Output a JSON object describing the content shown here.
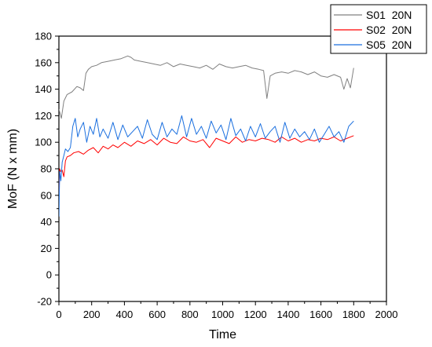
{
  "chart_data": {
    "type": "line",
    "title": "",
    "xlabel": "Time",
    "ylabel": "MoF (N x mm)",
    "xlim": [
      0,
      2000
    ],
    "ylim": [
      -20,
      180
    ],
    "x_ticks": [
      0,
      200,
      400,
      600,
      800,
      1000,
      1200,
      1400,
      1600,
      1800,
      2000
    ],
    "y_ticks": [
      -20,
      0,
      20,
      40,
      60,
      80,
      100,
      120,
      140,
      160,
      180
    ],
    "grid": false,
    "legend_position": "top-right",
    "series": [
      {
        "name": "S01  20N",
        "color": "#808080",
        "x": [
          0,
          15,
          30,
          50,
          80,
          110,
          130,
          150,
          165,
          180,
          200,
          230,
          260,
          300,
          340,
          380,
          420,
          440,
          460,
          500,
          540,
          580,
          620,
          660,
          700,
          740,
          780,
          820,
          860,
          900,
          940,
          980,
          1020,
          1060,
          1100,
          1140,
          1180,
          1220,
          1250,
          1270,
          1290,
          1320,
          1360,
          1400,
          1440,
          1480,
          1520,
          1560,
          1600,
          1640,
          1680,
          1720,
          1740,
          1760,
          1780,
          1800
        ],
        "y": [
          125,
          118,
          131,
          136,
          138,
          142,
          141,
          139,
          152,
          155,
          157,
          158,
          160,
          161,
          162,
          163,
          165,
          164,
          162,
          161,
          160,
          159,
          158,
          160,
          157,
          159,
          158,
          157,
          156,
          158,
          155,
          159,
          157,
          156,
          157,
          158,
          156,
          155,
          154,
          133,
          150,
          152,
          153,
          152,
          154,
          153,
          151,
          153,
          150,
          149,
          151,
          149,
          140,
          148,
          141,
          156
        ]
      },
      {
        "name": "S02  20N",
        "color": "#ff0000",
        "x": [
          0,
          5,
          10,
          20,
          30,
          40,
          50,
          70,
          90,
          120,
          150,
          180,
          210,
          240,
          270,
          300,
          330,
          360,
          400,
          440,
          480,
          520,
          560,
          600,
          640,
          680,
          720,
          760,
          800,
          840,
          880,
          920,
          960,
          1000,
          1040,
          1080,
          1120,
          1160,
          1200,
          1240,
          1280,
          1320,
          1360,
          1400,
          1440,
          1480,
          1520,
          1560,
          1600,
          1640,
          1680,
          1720,
          1760,
          1800
        ],
        "y": [
          55,
          80,
          78,
          79,
          74,
          86,
          89,
          90,
          92,
          93,
          91,
          94,
          96,
          92,
          97,
          95,
          98,
          96,
          100,
          97,
          101,
          99,
          102,
          98,
          103,
          100,
          99,
          104,
          101,
          100,
          102,
          96,
          103,
          101,
          99,
          104,
          100,
          102,
          101,
          103,
          102,
          100,
          104,
          101,
          103,
          100,
          102,
          101,
          103,
          102,
          104,
          101,
          103,
          105
        ]
      },
      {
        "name": "S05  20N",
        "color": "#1a6fdf",
        "x": [
          0,
          5,
          12,
          20,
          30,
          40,
          55,
          70,
          85,
          100,
          115,
          130,
          150,
          170,
          190,
          210,
          230,
          250,
          270,
          300,
          330,
          360,
          390,
          420,
          450,
          480,
          510,
          540,
          570,
          600,
          630,
          660,
          690,
          720,
          750,
          780,
          810,
          840,
          870,
          900,
          930,
          960,
          990,
          1020,
          1050,
          1080,
          1110,
          1140,
          1170,
          1200,
          1230,
          1260,
          1290,
          1320,
          1350,
          1380,
          1410,
          1440,
          1470,
          1500,
          1530,
          1560,
          1590,
          1620,
          1650,
          1680,
          1710,
          1740,
          1770,
          1800
        ],
        "y": [
          44,
          78,
          71,
          85,
          90,
          95,
          93,
          96,
          112,
          118,
          104,
          110,
          115,
          100,
          112,
          106,
          118,
          104,
          110,
          103,
          115,
          102,
          113,
          104,
          108,
          112,
          103,
          117,
          106,
          102,
          115,
          104,
          110,
          106,
          120,
          104,
          118,
          106,
          112,
          103,
          116,
          107,
          113,
          102,
          118,
          105,
          110,
          101,
          112,
          104,
          114,
          103,
          108,
          112,
          100,
          115,
          103,
          110,
          104,
          108,
          102,
          110,
          100,
          106,
          112,
          104,
          108,
          100,
          112,
          116
        ]
      }
    ]
  }
}
